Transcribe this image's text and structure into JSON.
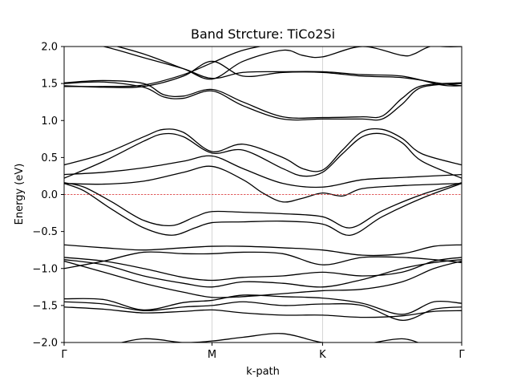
{
  "chart_data": {
    "type": "line",
    "title": "Band Strcture: TiCo2Si",
    "xlabel": "k-path",
    "ylabel": "Energy (eV)",
    "ylim": [
      -2.0,
      2.0
    ],
    "xlim": [
      0,
      1
    ],
    "yticks": [
      -2.0,
      -1.5,
      -1.0,
      -0.5,
      0.0,
      0.5,
      1.0,
      1.5,
      2.0
    ],
    "ytick_labels": [
      "−2.0",
      "−1.5",
      "−1.0",
      "−0.5",
      "0.0",
      "0.5",
      "1.0",
      "1.5",
      "2.0"
    ],
    "high_symmetry_points": [
      {
        "label": "Γ",
        "x": 0.0
      },
      {
        "label": "M",
        "x": 0.372
      },
      {
        "label": "K",
        "x": 0.65
      },
      {
        "label": "Γ",
        "x": 1.0
      }
    ],
    "grid": "vertical lines at high-symmetry points",
    "fermi_level": {
      "y": 0.0,
      "color": "#d62728",
      "style": "dashed"
    },
    "band_color": "#000000",
    "bands": [
      {
        "x": [
          0,
          0.1,
          0.2,
          0.3,
          0.372,
          0.45,
          0.55,
          0.65,
          0.75,
          0.85,
          0.93,
          1.0
        ],
        "y": [
          -1.52,
          -1.55,
          -1.6,
          -1.58,
          -1.56,
          -1.6,
          -1.63,
          -1.63,
          -1.66,
          -1.64,
          -1.58,
          -1.57
        ]
      },
      {
        "x": [
          0,
          0.1,
          0.2,
          0.3,
          0.372,
          0.45,
          0.55,
          0.65,
          0.75,
          0.85,
          0.93,
          1.0
        ],
        "y": [
          -1.45,
          -1.48,
          -1.57,
          -1.52,
          -1.5,
          -1.45,
          -1.5,
          -1.48,
          -1.5,
          -1.7,
          -1.55,
          -1.52
        ]
      },
      {
        "x": [
          0,
          0.1,
          0.2,
          0.3,
          0.372,
          0.45,
          0.55,
          0.65,
          0.75,
          0.85,
          0.93,
          1.0
        ],
        "y": [
          -1.41,
          -1.42,
          -1.56,
          -1.46,
          -1.43,
          -1.36,
          -1.38,
          -1.4,
          -1.47,
          -1.62,
          -1.45,
          -1.47
        ]
      },
      {
        "x": [
          0,
          0.1,
          0.2,
          0.3,
          0.372,
          0.45,
          0.55,
          0.65,
          0.75,
          0.85,
          0.93,
          1.0
        ],
        "y": [
          -0.9,
          -1.05,
          -1.2,
          -1.32,
          -1.39,
          -1.38,
          -1.34,
          -1.3,
          -1.28,
          -1.18,
          -1.0,
          -0.9
        ]
      },
      {
        "x": [
          0,
          0.1,
          0.2,
          0.3,
          0.372,
          0.45,
          0.55,
          0.65,
          0.75,
          0.85,
          0.93,
          1.0
        ],
        "y": [
          -0.88,
          -0.95,
          -1.1,
          -1.2,
          -1.25,
          -1.18,
          -1.2,
          -1.25,
          -1.15,
          -1.0,
          -0.92,
          -0.88
        ]
      },
      {
        "x": [
          0,
          0.1,
          0.2,
          0.3,
          0.372,
          0.45,
          0.55,
          0.65,
          0.75,
          0.85,
          0.93,
          1.0
        ],
        "y": [
          -0.85,
          -0.9,
          -1.0,
          -1.12,
          -1.16,
          -1.12,
          -1.1,
          -1.05,
          -1.1,
          -1.05,
          -0.9,
          -0.85
        ]
      },
      {
        "x": [
          0,
          0.1,
          0.2,
          0.3,
          0.372,
          0.45,
          0.55,
          0.65,
          0.75,
          0.85,
          0.93,
          1.0
        ],
        "y": [
          -1.0,
          -0.9,
          -0.78,
          -0.8,
          -0.8,
          -0.78,
          -0.8,
          -0.95,
          -0.85,
          -0.85,
          -0.88,
          -0.92
        ]
      },
      {
        "x": [
          0,
          0.1,
          0.2,
          0.3,
          0.372,
          0.45,
          0.55,
          0.65,
          0.75,
          0.85,
          0.93,
          1.0
        ],
        "y": [
          -0.68,
          -0.72,
          -0.75,
          -0.72,
          -0.7,
          -0.7,
          -0.72,
          -0.75,
          -0.82,
          -0.8,
          -0.7,
          -0.68
        ]
      },
      {
        "x": [
          0,
          0.05,
          0.12,
          0.2,
          0.27,
          0.33,
          0.372,
          0.45,
          0.55,
          0.65,
          0.72,
          0.8,
          0.9,
          1.0
        ],
        "y": [
          0.15,
          0.05,
          -0.2,
          -0.45,
          -0.55,
          -0.45,
          -0.38,
          -0.37,
          -0.36,
          -0.4,
          -0.55,
          -0.3,
          -0.05,
          0.15
        ]
      },
      {
        "x": [
          0,
          0.05,
          0.12,
          0.2,
          0.27,
          0.33,
          0.372,
          0.45,
          0.55,
          0.65,
          0.72,
          0.8,
          0.9,
          1.0
        ],
        "y": [
          0.16,
          0.1,
          -0.1,
          -0.35,
          -0.42,
          -0.3,
          -0.23,
          -0.24,
          -0.26,
          -0.3,
          -0.45,
          -0.22,
          0.0,
          0.16
        ]
      },
      {
        "x": [
          0,
          0.1,
          0.2,
          0.3,
          0.372,
          0.45,
          0.5,
          0.55,
          0.6,
          0.65,
          0.7,
          0.75,
          0.85,
          1.0
        ],
        "y": [
          0.15,
          0.14,
          0.18,
          0.3,
          0.38,
          0.2,
          0.02,
          -0.1,
          -0.05,
          0.02,
          -0.02,
          0.08,
          0.12,
          0.15
        ]
      },
      {
        "x": [
          0,
          0.1,
          0.2,
          0.3,
          0.372,
          0.45,
          0.55,
          0.65,
          0.75,
          0.85,
          1.0
        ],
        "y": [
          0.27,
          0.3,
          0.36,
          0.45,
          0.52,
          0.35,
          0.15,
          0.1,
          0.2,
          0.23,
          0.27
        ]
      },
      {
        "x": [
          0,
          0.1,
          0.2,
          0.25,
          0.3,
          0.372,
          0.45,
          0.55,
          0.6,
          0.65,
          0.7,
          0.75,
          0.8,
          0.85,
          0.9,
          1.0
        ],
        "y": [
          0.22,
          0.45,
          0.72,
          0.82,
          0.78,
          0.56,
          0.6,
          0.35,
          0.25,
          0.3,
          0.55,
          0.78,
          0.82,
          0.7,
          0.45,
          0.22
        ]
      },
      {
        "x": [
          0,
          0.1,
          0.2,
          0.25,
          0.3,
          0.372,
          0.45,
          0.55,
          0.6,
          0.65,
          0.7,
          0.75,
          0.8,
          0.85,
          0.9,
          1.0
        ],
        "y": [
          0.4,
          0.55,
          0.78,
          0.88,
          0.84,
          0.58,
          0.68,
          0.5,
          0.35,
          0.33,
          0.6,
          0.85,
          0.88,
          0.76,
          0.55,
          0.4
        ]
      },
      {
        "x": [
          0,
          0.1,
          0.2,
          0.25,
          0.3,
          0.372,
          0.45,
          0.55,
          0.65,
          0.75,
          0.8,
          0.85,
          0.9,
          1.0
        ],
        "y": [
          1.5,
          1.52,
          1.45,
          1.32,
          1.3,
          1.4,
          1.2,
          1.02,
          1.02,
          1.02,
          1.02,
          1.22,
          1.45,
          1.5
        ]
      },
      {
        "x": [
          0,
          0.1,
          0.2,
          0.25,
          0.3,
          0.372,
          0.45,
          0.55,
          0.65,
          0.75,
          0.8,
          0.85,
          0.9,
          1.0
        ],
        "y": [
          1.51,
          1.54,
          1.5,
          1.35,
          1.33,
          1.42,
          1.25,
          1.05,
          1.04,
          1.05,
          1.06,
          1.3,
          1.47,
          1.51
        ]
      },
      {
        "x": [
          0,
          0.1,
          0.2,
          0.3,
          0.372,
          0.45,
          0.55,
          0.65,
          0.75,
          0.85,
          0.95,
          1.0
        ],
        "y": [
          1.46,
          1.46,
          1.48,
          1.62,
          1.78,
          1.95,
          2.05,
          2.1,
          2.1,
          2.05,
          2.0,
          2.0
        ]
      },
      {
        "x": [
          0,
          0.1,
          0.2,
          0.3,
          0.372,
          0.45,
          0.55,
          0.65,
          0.75,
          0.85,
          0.95,
          1.0
        ],
        "y": [
          1.47,
          1.45,
          1.46,
          1.6,
          1.8,
          1.6,
          1.65,
          1.65,
          1.6,
          1.58,
          1.5,
          1.47
        ]
      },
      {
        "x": [
          0,
          0.1,
          0.2,
          0.3,
          0.372,
          0.45,
          0.55,
          0.65,
          0.75,
          0.85,
          0.95,
          1.0
        ],
        "y": [
          2.1,
          2.0,
          1.85,
          1.7,
          1.57,
          1.65,
          1.66,
          1.66,
          1.62,
          1.6,
          1.48,
          1.47
        ]
      },
      {
        "x": [
          0,
          0.1,
          0.2,
          0.3,
          0.372,
          0.45,
          0.55,
          0.6,
          0.65,
          0.75,
          0.85,
          0.88,
          0.92,
          1.0
        ],
        "y": [
          2.2,
          2.05,
          1.9,
          1.7,
          1.56,
          1.8,
          1.95,
          1.88,
          1.86,
          2.0,
          1.88,
          1.9,
          2.0,
          2.1
        ]
      },
      {
        "x": [
          0,
          0.1,
          0.2,
          0.3,
          0.372,
          0.45,
          0.55,
          0.65,
          0.75,
          0.85,
          0.92,
          1.0
        ],
        "y": [
          -2.1,
          -2.05,
          -1.95,
          -2.0,
          -1.98,
          -1.93,
          -1.88,
          -2.0,
          -2.02,
          -1.95,
          -2.05,
          -2.1
        ]
      }
    ]
  }
}
